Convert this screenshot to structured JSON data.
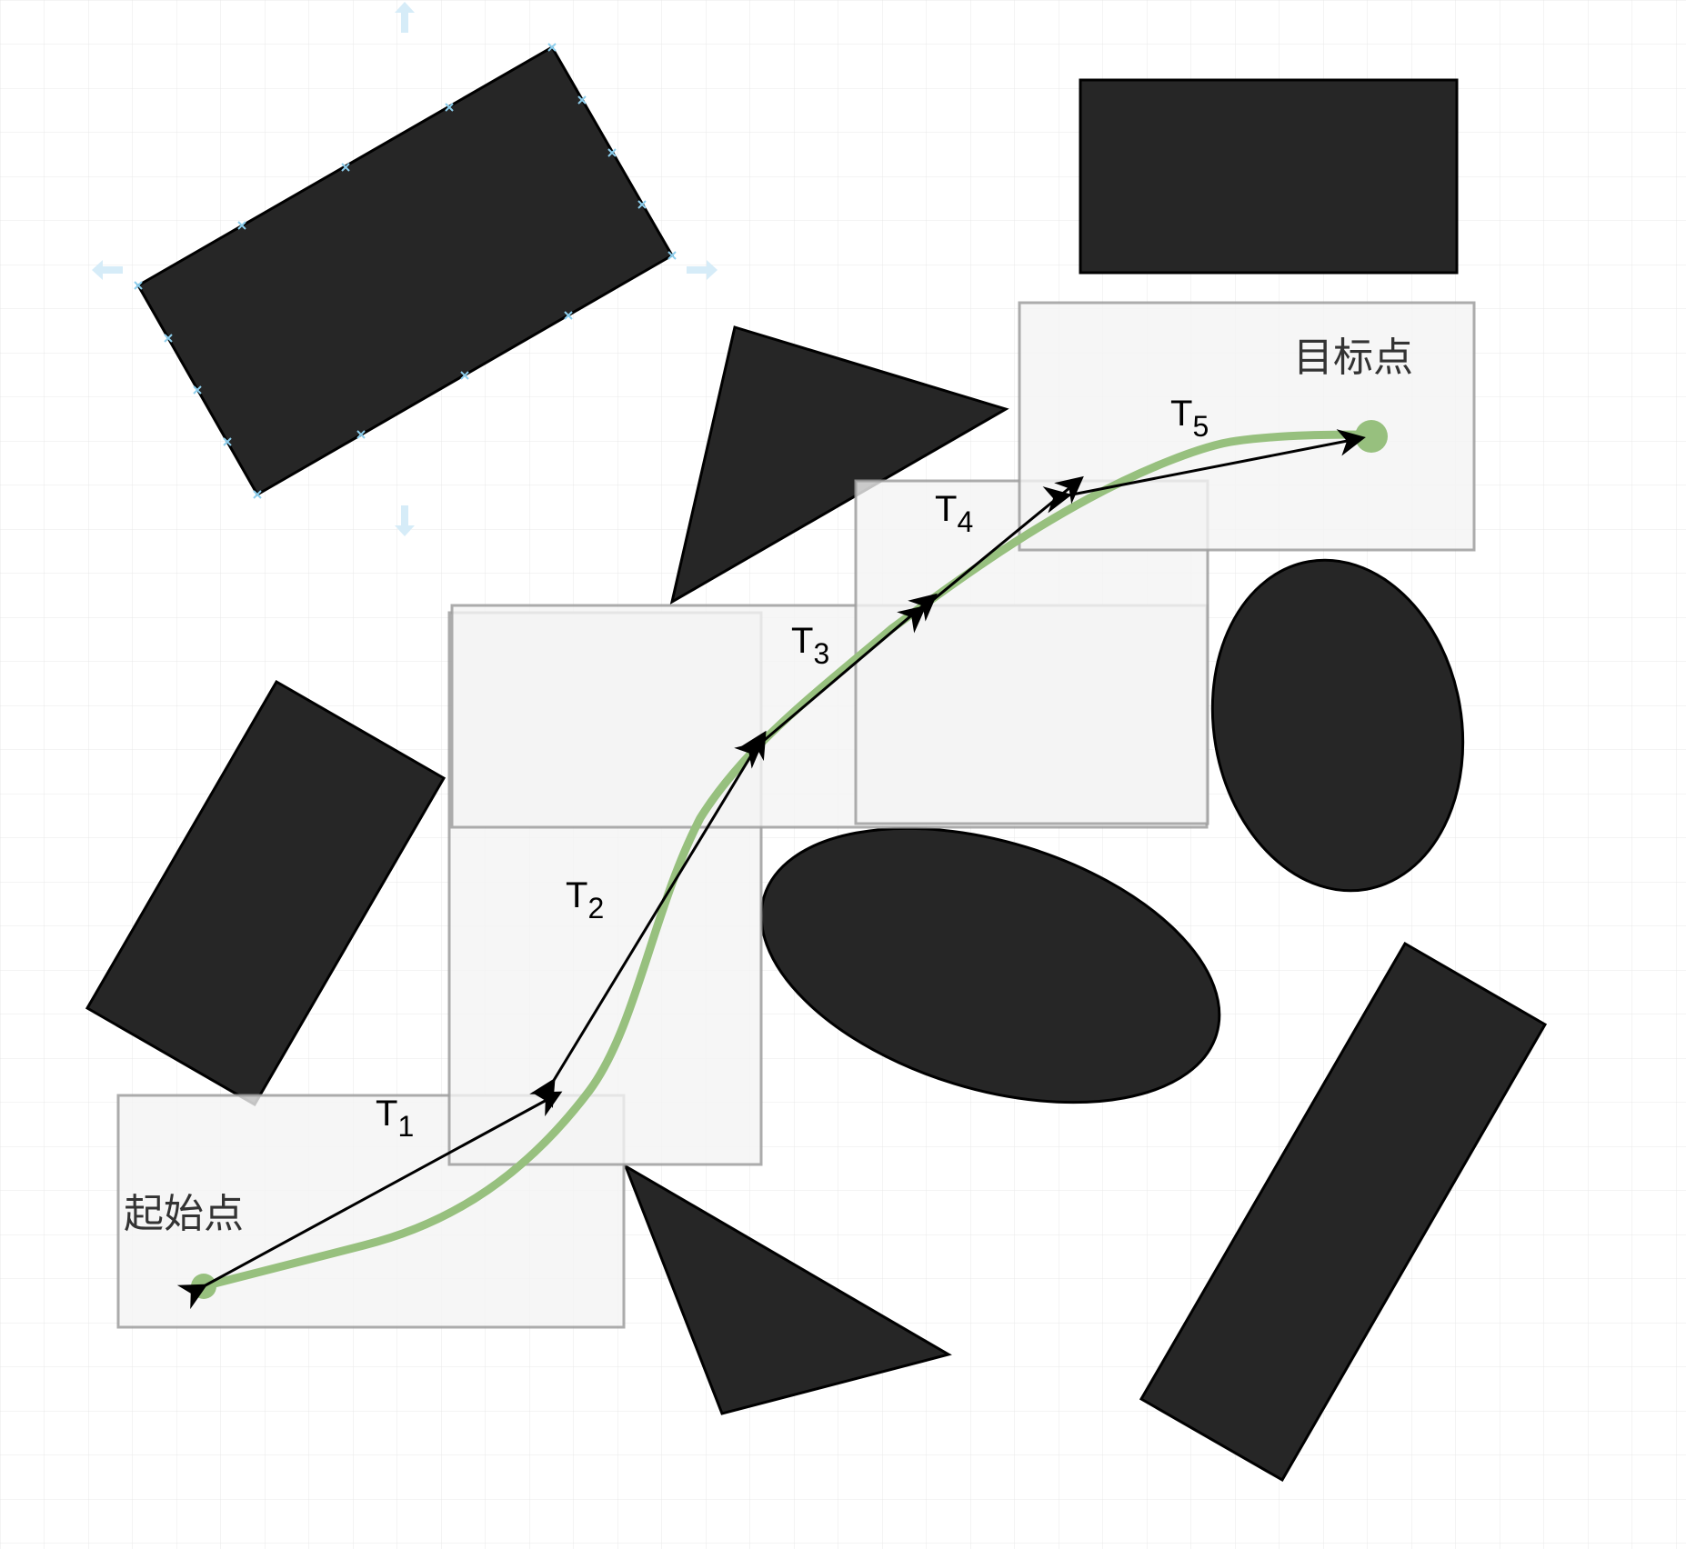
{
  "diagram": {
    "start_label": "起始点",
    "goal_label": "目标点",
    "segments": [
      {
        "letter": "T",
        "index": "1"
      },
      {
        "letter": "T",
        "index": "2"
      },
      {
        "letter": "T",
        "index": "3"
      },
      {
        "letter": "T",
        "index": "4"
      },
      {
        "letter": "T",
        "index": "5"
      }
    ]
  },
  "colors": {
    "background": "#ffffff",
    "grid": "#e6e6e6",
    "obstacle_fill": "#262626",
    "obstacle_stroke": "#000000",
    "region_fill": "#f2f2f2",
    "region_stroke": "#9e9e9e",
    "path": "#97c07e",
    "arrow": "#000000",
    "selection_handle": "#8ecfee"
  }
}
